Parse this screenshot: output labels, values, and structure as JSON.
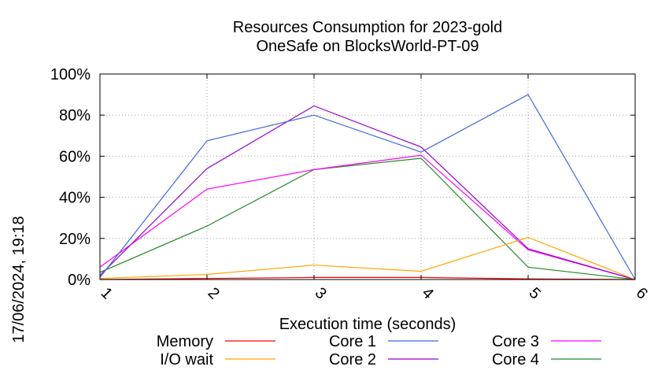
{
  "chart_data": {
    "type": "line",
    "title": "Resources Consumption for 2023-gold",
    "subtitle": "OneSafe on BlocksWorld-PT-09",
    "xlabel": "Execution time (seconds)",
    "ylabel": "",
    "side_label": "17/06/2024, 19:18",
    "x": [
      1,
      2,
      3,
      4,
      5,
      6
    ],
    "xlim": [
      1,
      6
    ],
    "ylim": [
      0,
      100
    ],
    "x_ticks": [
      "1",
      "2",
      "3",
      "4",
      "5",
      "6"
    ],
    "y_ticks": [
      "0%",
      "20%",
      "40%",
      "60%",
      "80%",
      "100%"
    ],
    "grid": true,
    "legend_position": "bottom",
    "series": [
      {
        "name": "Memory",
        "color": "#ff0000",
        "values": [
          0,
          0.5,
          1,
          1,
          0.3,
          0
        ]
      },
      {
        "name": "I/O wait",
        "color": "#ffa500",
        "values": [
          0.5,
          2.5,
          7,
          4,
          20.5,
          0
        ]
      },
      {
        "name": "Core 1",
        "color": "#4169e1",
        "values": [
          1,
          67.5,
          80,
          62,
          90,
          0
        ]
      },
      {
        "name": "Core 2",
        "color": "#9400d3",
        "values": [
          2,
          54,
          84.5,
          64.5,
          15,
          0
        ]
      },
      {
        "name": "Core 3",
        "color": "#ff00ff",
        "values": [
          6,
          44,
          53.5,
          60.5,
          14.5,
          0
        ]
      },
      {
        "name": "Core 4",
        "color": "#228b22",
        "values": [
          3.5,
          26,
          53.5,
          59,
          6,
          0
        ]
      }
    ]
  }
}
